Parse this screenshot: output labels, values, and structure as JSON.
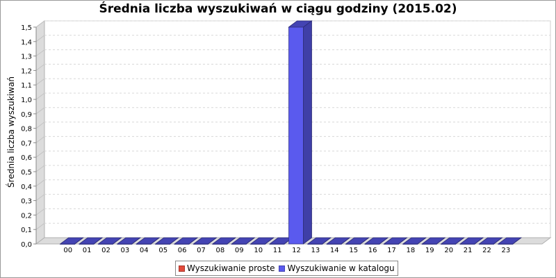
{
  "chart_data": {
    "type": "bar",
    "title": "Średnia liczba wyszukiwań w ciągu godziny (2015.02)",
    "xlabel": "",
    "ylabel": "Średnia liczba wyszukiwań",
    "categories": [
      "00",
      "01",
      "02",
      "03",
      "04",
      "05",
      "06",
      "07",
      "08",
      "09",
      "10",
      "11",
      "12",
      "13",
      "14",
      "15",
      "16",
      "17",
      "18",
      "19",
      "20",
      "21",
      "22",
      "23"
    ],
    "series": [
      {
        "name": "Wyszukiwanie proste",
        "color": "#e24a3b",
        "values": [
          0,
          0,
          0,
          0,
          0,
          0,
          0,
          0,
          0,
          0,
          0,
          0,
          0,
          0,
          0,
          0,
          0,
          0,
          0,
          0,
          0,
          0,
          0,
          0
        ]
      },
      {
        "name": "Wyszukiwanie w katalogu",
        "color": "#5a5aee",
        "values": [
          0,
          0,
          0,
          0,
          0,
          0,
          0,
          0,
          0,
          0,
          0,
          0,
          1.5,
          0,
          0,
          0,
          0,
          0,
          0,
          0,
          0,
          0,
          0,
          0
        ]
      }
    ],
    "ylim": [
      0,
      1.5
    ],
    "y_ticks": [
      "0,0",
      "0,1",
      "0,2",
      "0,3",
      "0,4",
      "0,5",
      "0,6",
      "0,7",
      "0,8",
      "0,9",
      "1,0",
      "1,1",
      "1,2",
      "1,3",
      "1,4",
      "1,5"
    ],
    "grid": true,
    "legend_position": "bottom",
    "style": "3d"
  }
}
